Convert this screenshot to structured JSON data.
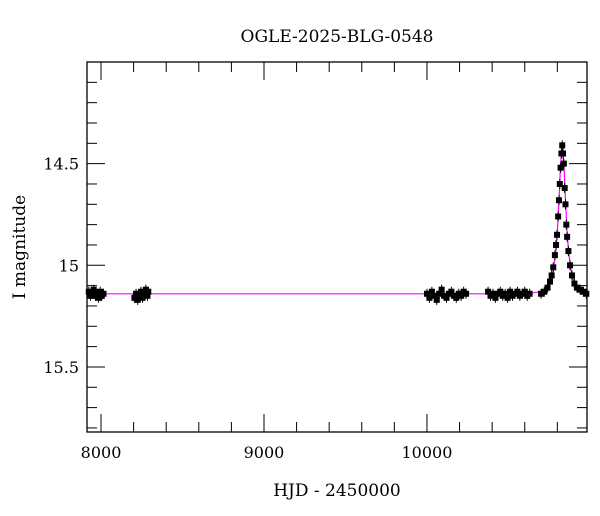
{
  "chart_data": {
    "type": "scatter",
    "title": "OGLE-2025-BLG-0548",
    "xlabel": "HJD - 2450000",
    "ylabel": "I magnitude",
    "xlim": [
      7914,
      10982
    ],
    "ylim": [
      14.0,
      15.82
    ],
    "y_inverted": true,
    "grid": false,
    "x_ticks": [
      8000,
      9000,
      10000
    ],
    "x_tick_labels": [
      "8000",
      "9000",
      "10000"
    ],
    "y_ticks": [
      14.5,
      15,
      15.5
    ],
    "y_tick_labels": [
      "14.5",
      "15",
      "15.5"
    ],
    "colors": {
      "points": "#000000",
      "model": "#ff00ff"
    },
    "points": [
      [
        7925,
        15.13
      ],
      [
        7935,
        15.15
      ],
      [
        7945,
        15.14
      ],
      [
        7955,
        15.12
      ],
      [
        7965,
        15.15
      ],
      [
        7975,
        15.14
      ],
      [
        7985,
        15.16
      ],
      [
        7995,
        15.13
      ],
      [
        8005,
        15.15
      ],
      [
        8015,
        15.14
      ],
      [
        8205,
        15.16
      ],
      [
        8215,
        15.14
      ],
      [
        8225,
        15.17
      ],
      [
        8235,
        15.15
      ],
      [
        8245,
        15.13
      ],
      [
        8255,
        15.16
      ],
      [
        8265,
        15.14
      ],
      [
        8275,
        15.12
      ],
      [
        8285,
        15.15
      ],
      [
        8290,
        15.13
      ],
      [
        10000,
        15.14
      ],
      [
        10015,
        15.16
      ],
      [
        10030,
        15.13
      ],
      [
        10045,
        15.15
      ],
      [
        10060,
        15.17
      ],
      [
        10075,
        15.14
      ],
      [
        10090,
        15.12
      ],
      [
        10105,
        15.15
      ],
      [
        10120,
        15.16
      ],
      [
        10135,
        15.14
      ],
      [
        10150,
        15.13
      ],
      [
        10165,
        15.15
      ],
      [
        10180,
        15.16
      ],
      [
        10195,
        15.14
      ],
      [
        10210,
        15.15
      ],
      [
        10225,
        15.13
      ],
      [
        10240,
        15.14
      ],
      [
        10375,
        15.13
      ],
      [
        10390,
        15.15
      ],
      [
        10405,
        15.14
      ],
      [
        10420,
        15.16
      ],
      [
        10435,
        15.14
      ],
      [
        10450,
        15.13
      ],
      [
        10465,
        15.15
      ],
      [
        10480,
        15.14
      ],
      [
        10495,
        15.16
      ],
      [
        10510,
        15.13
      ],
      [
        10525,
        15.15
      ],
      [
        10540,
        15.14
      ],
      [
        10555,
        15.13
      ],
      [
        10570,
        15.15
      ],
      [
        10585,
        15.14
      ],
      [
        10600,
        15.13
      ],
      [
        10615,
        15.15
      ],
      [
        10630,
        15.14
      ],
      [
        10700,
        15.14
      ],
      [
        10720,
        15.13
      ],
      [
        10740,
        15.11
      ],
      [
        10755,
        15.08
      ],
      [
        10765,
        15.05
      ],
      [
        10775,
        15.01
      ],
      [
        10785,
        14.95
      ],
      [
        10792,
        14.9
      ],
      [
        10798,
        14.85
      ],
      [
        10805,
        14.76
      ],
      [
        10810,
        14.68
      ],
      [
        10815,
        14.6
      ],
      [
        10820,
        14.52
      ],
      [
        10825,
        14.45
      ],
      [
        10830,
        14.41
      ],
      [
        10835,
        14.45
      ],
      [
        10840,
        14.5
      ],
      [
        10845,
        14.62
      ],
      [
        10850,
        14.7
      ],
      [
        10855,
        14.8
      ],
      [
        10860,
        14.86
      ],
      [
        10868,
        14.93
      ],
      [
        10878,
        15.0
      ],
      [
        10890,
        15.05
      ],
      [
        10905,
        15.09
      ],
      [
        10920,
        15.11
      ],
      [
        10940,
        15.12
      ],
      [
        10960,
        15.13
      ],
      [
        10978,
        15.14
      ]
    ],
    "model": {
      "x": [
        7914,
        10600,
        10700,
        10740,
        10770,
        10790,
        10800,
        10810,
        10820,
        10830,
        10840,
        10850,
        10860,
        10870,
        10890,
        10920,
        10982
      ],
      "y": [
        15.14,
        15.14,
        15.13,
        15.11,
        15.055,
        14.94,
        14.84,
        14.68,
        14.5,
        14.41,
        14.5,
        14.68,
        14.84,
        14.94,
        15.055,
        15.11,
        15.13
      ]
    }
  }
}
